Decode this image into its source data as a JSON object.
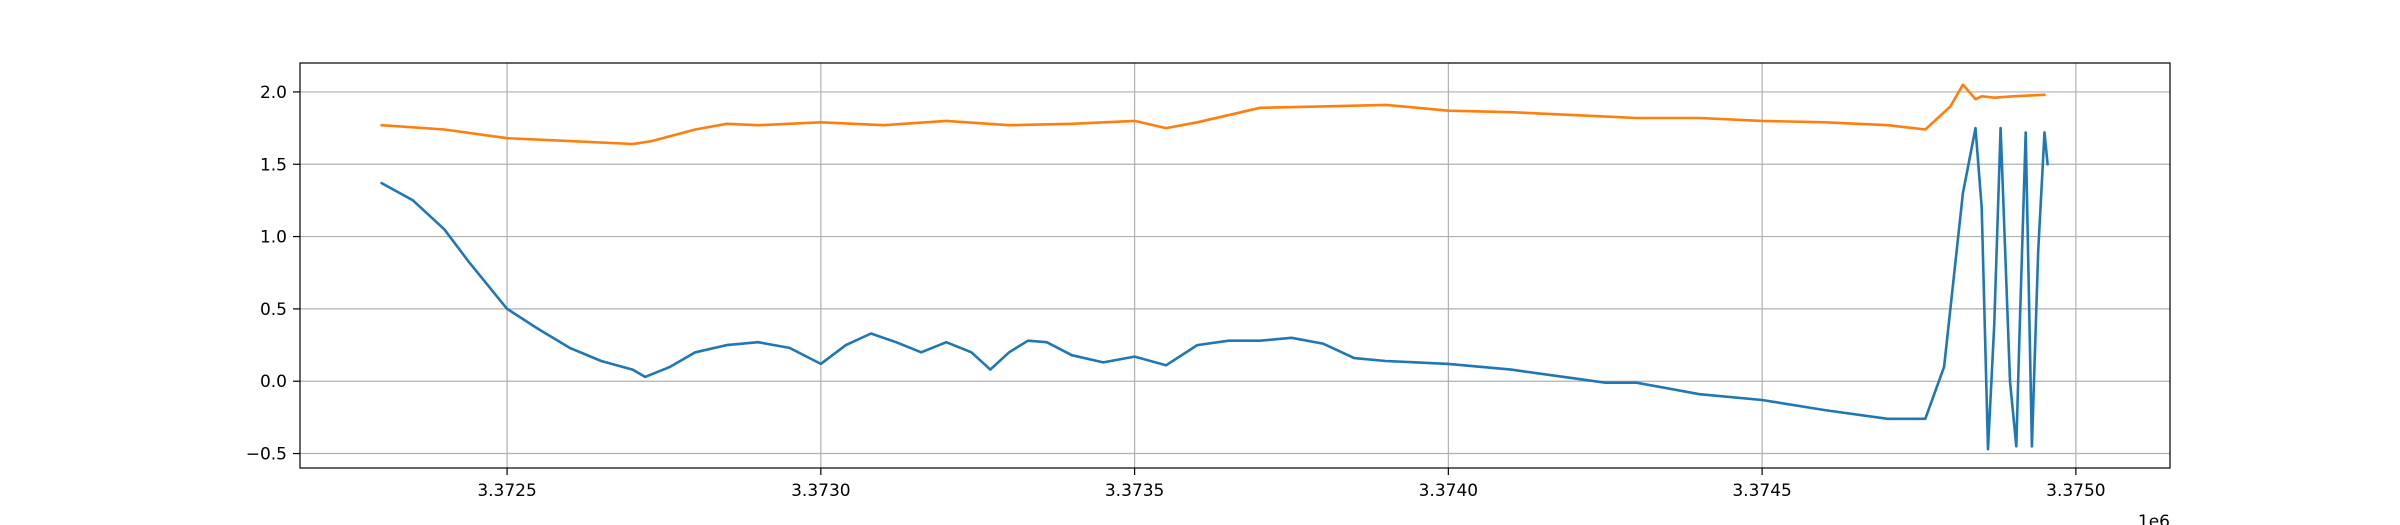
{
  "chart_data": {
    "type": "line",
    "title": "",
    "xlabel": "",
    "ylabel": "",
    "x_offset_label": "1e6",
    "xlim": [
      3372170,
      3375150
    ],
    "ylim": [
      -0.6,
      2.2
    ],
    "grid": true,
    "x_ticks": [
      {
        "value": 3372500,
        "label": "3.3725"
      },
      {
        "value": 3373000,
        "label": "3.3730"
      },
      {
        "value": 3373500,
        "label": "3.3735"
      },
      {
        "value": 3374000,
        "label": "3.3740"
      },
      {
        "value": 3374500,
        "label": "3.3745"
      },
      {
        "value": 3375000,
        "label": "3.3750"
      }
    ],
    "y_ticks": [
      {
        "value": -0.5,
        "label": "−0.5"
      },
      {
        "value": 0.0,
        "label": "0.0"
      },
      {
        "value": 0.5,
        "label": "0.5"
      },
      {
        "value": 1.0,
        "label": "1.0"
      },
      {
        "value": 1.5,
        "label": "1.5"
      },
      {
        "value": 2.0,
        "label": "2.0"
      }
    ],
    "series": [
      {
        "color": "#1f77b4",
        "x": [
          3372300,
          3372350,
          3372400,
          3372440,
          3372500,
          3372550,
          3372600,
          3372650,
          3372700,
          3372720,
          3372760,
          3372800,
          3372850,
          3372900,
          3372950,
          3373000,
          3373040,
          3373080,
          3373120,
          3373160,
          3373200,
          3373240,
          3373270,
          3373300,
          3373330,
          3373360,
          3373400,
          3373450,
          3373500,
          3373550,
          3373600,
          3373650,
          3373700,
          3373750,
          3373800,
          3373850,
          3373900,
          3373950,
          3374000,
          3374100,
          3374200,
          3374250,
          3374300,
          3374400,
          3374500,
          3374600,
          3374700,
          3374760,
          3374790,
          3374820,
          3374840,
          3374850,
          3374860,
          3374870,
          3374880,
          3374895,
          3374905,
          3374910,
          3374920,
          3374930,
          3374940,
          3374950,
          3374955
        ],
        "values": [
          1.37,
          1.25,
          1.05,
          0.82,
          0.5,
          0.36,
          0.23,
          0.14,
          0.08,
          0.03,
          0.1,
          0.2,
          0.25,
          0.27,
          0.23,
          0.12,
          0.25,
          0.33,
          0.27,
          0.2,
          0.27,
          0.2,
          0.08,
          0.2,
          0.28,
          0.27,
          0.18,
          0.13,
          0.17,
          0.11,
          0.25,
          0.28,
          0.28,
          0.3,
          0.26,
          0.16,
          0.14,
          0.13,
          0.12,
          0.08,
          0.02,
          -0.01,
          -0.01,
          -0.09,
          -0.13,
          -0.2,
          -0.26,
          -0.26,
          0.1,
          1.3,
          1.75,
          1.2,
          -0.47,
          0.4,
          1.75,
          0.0,
          -0.45,
          0.3,
          1.72,
          -0.45,
          0.9,
          1.72,
          1.5
        ]
      },
      {
        "color": "#ff7f0e",
        "x": [
          3372300,
          3372400,
          3372500,
          3372600,
          3372700,
          3372730,
          3372800,
          3372850,
          3372900,
          3373000,
          3373100,
          3373200,
          3373300,
          3373400,
          3373500,
          3373550,
          3373600,
          3373700,
          3373800,
          3373900,
          3374000,
          3374100,
          3374200,
          3374300,
          3374400,
          3374500,
          3374600,
          3374700,
          3374760,
          3374800,
          3374820,
          3374840,
          3374850,
          3374870,
          3374900,
          3374950
        ],
        "values": [
          1.77,
          1.74,
          1.68,
          1.66,
          1.64,
          1.66,
          1.74,
          1.78,
          1.77,
          1.79,
          1.77,
          1.8,
          1.77,
          1.78,
          1.8,
          1.75,
          1.79,
          1.89,
          1.9,
          1.91,
          1.87,
          1.86,
          1.84,
          1.82,
          1.82,
          1.8,
          1.79,
          1.77,
          1.74,
          1.9,
          2.05,
          1.95,
          1.97,
          1.96,
          1.97,
          1.98
        ]
      }
    ]
  }
}
